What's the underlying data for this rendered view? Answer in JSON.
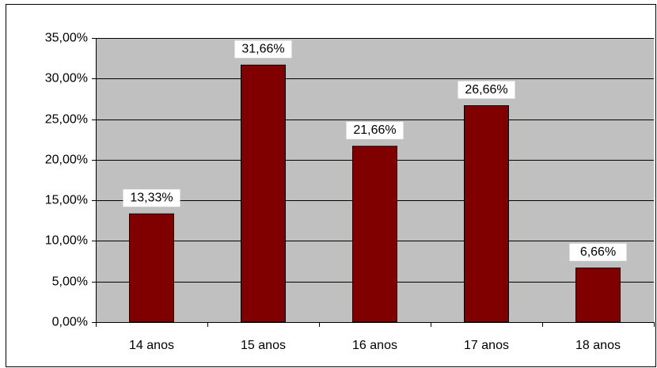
{
  "chart_data": {
    "type": "bar",
    "categories": [
      "14 anos",
      "15 anos",
      "16 anos",
      "17 anos",
      "18 anos"
    ],
    "values": [
      13.33,
      31.66,
      21.66,
      26.66,
      6.66
    ],
    "value_labels": [
      "13,33%",
      "31,66%",
      "21,66%",
      "26,66%",
      "6,66%"
    ],
    "color": "#800000",
    "ylim": [
      0,
      35
    ],
    "yticks": [
      {
        "value": 0,
        "label": "0,00%"
      },
      {
        "value": 5,
        "label": "5,00%"
      },
      {
        "value": 10,
        "label": "10,00%"
      },
      {
        "value": 15,
        "label": "15,00%"
      },
      {
        "value": 20,
        "label": "20,00%"
      },
      {
        "value": 25,
        "label": "25,00%"
      },
      {
        "value": 30,
        "label": "30,00%"
      },
      {
        "value": 35,
        "label": "35,00%"
      }
    ],
    "grid": true
  }
}
